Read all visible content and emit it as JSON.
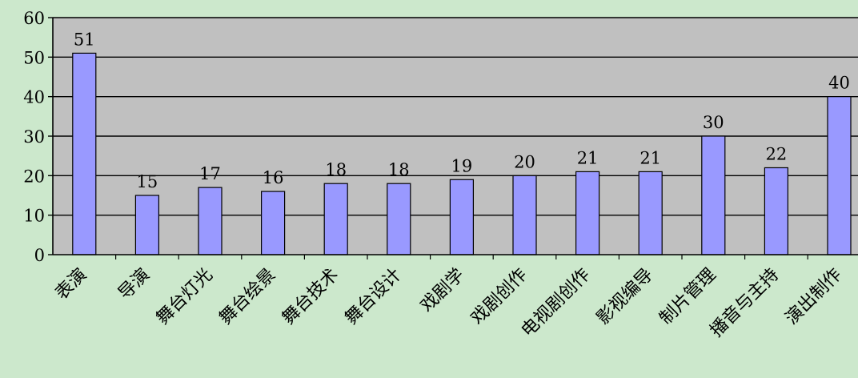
{
  "colors": {
    "page_background": "#cce8cc",
    "plot_background": "#c0c0c0",
    "bar_fill": "#9999ff",
    "bar_stroke": "#000000",
    "gridline": "#000000"
  },
  "chart_data": {
    "type": "bar",
    "title": "",
    "xlabel": "",
    "ylabel": "",
    "categories": [
      "表演",
      "导演",
      "舞台灯光",
      "舞台绘景",
      "舞台技术",
      "舞台设计",
      "戏剧学",
      "戏剧创作",
      "电视剧创作",
      "影视编导",
      "制片管理",
      "播音与主持",
      "演出制作"
    ],
    "values": [
      51,
      15,
      17,
      16,
      18,
      18,
      19,
      20,
      21,
      21,
      30,
      22,
      40
    ],
    "data_labels": [
      "51",
      "15",
      "17",
      "16",
      "18",
      "18",
      "19",
      "20",
      "21",
      "21",
      "30",
      "22",
      "40"
    ],
    "ylim": [
      0,
      60
    ],
    "yticks": [
      0,
      10,
      20,
      30,
      40,
      50,
      60
    ],
    "ytick_labels": [
      "0",
      "10",
      "20",
      "30",
      "40",
      "50",
      "60"
    ],
    "grid": true,
    "legend": "none",
    "xtick_rotation_deg": -45
  }
}
